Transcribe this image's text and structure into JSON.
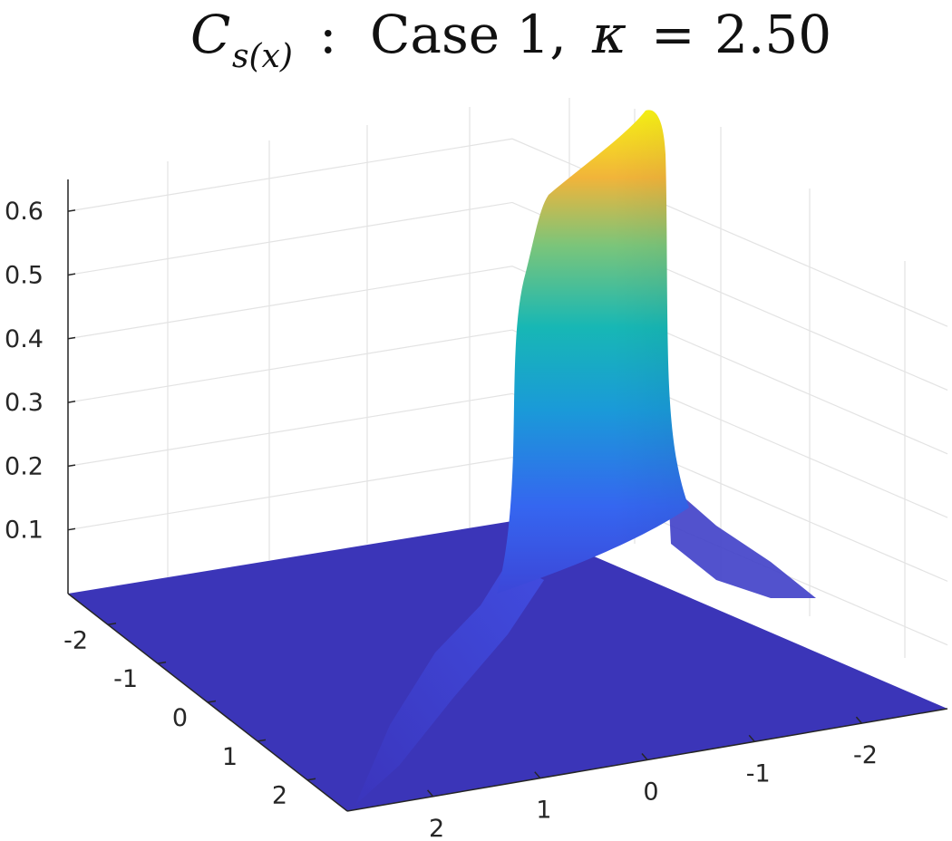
{
  "title": {
    "symbol": "C",
    "subscript": "s(x)",
    "colon": ":",
    "case_text": "Case 1,",
    "param_symbol": "κ",
    "equals": "=",
    "param_value": "2.50"
  },
  "chart_data": {
    "type": "surface",
    "colormap": "parula",
    "grid": true,
    "z_ticks": [
      "0.1",
      "0.2",
      "0.3",
      "0.4",
      "0.5",
      "0.6"
    ],
    "z_tick_values": [
      0.1,
      0.2,
      0.3,
      0.4,
      0.5,
      0.6
    ],
    "zlim": [
      0,
      0.65
    ],
    "left_axis_ticks": [
      "-2",
      "-1",
      "0",
      "1",
      "2"
    ],
    "left_axis_values": [
      -2,
      -1,
      0,
      1,
      2
    ],
    "front_axis_ticks": [
      "2",
      "1",
      "0",
      "-1",
      "-2"
    ],
    "front_axis_values": [
      2,
      1,
      0,
      -1,
      -2
    ],
    "xlim": [
      -2.8,
      2.8
    ],
    "ylim": [
      -2.8,
      2.8
    ],
    "surface_description_values": {
      "peak_value": 0.65,
      "ridge_along": "x = 0",
      "floor_value": 0
    }
  }
}
